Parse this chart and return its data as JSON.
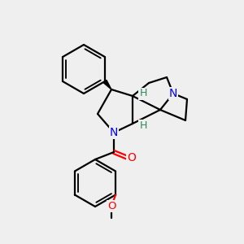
{
  "bg_color": "#efefef",
  "atom_colors": {
    "N": "#0000ff",
    "O": "#ff0000",
    "H_stereo": "#2e8b57",
    "C": "#000000"
  },
  "bond_color": "#000000",
  "bond_lw": 1.6,
  "fig_size": [
    3.0,
    3.0
  ],
  "dpi": 100
}
